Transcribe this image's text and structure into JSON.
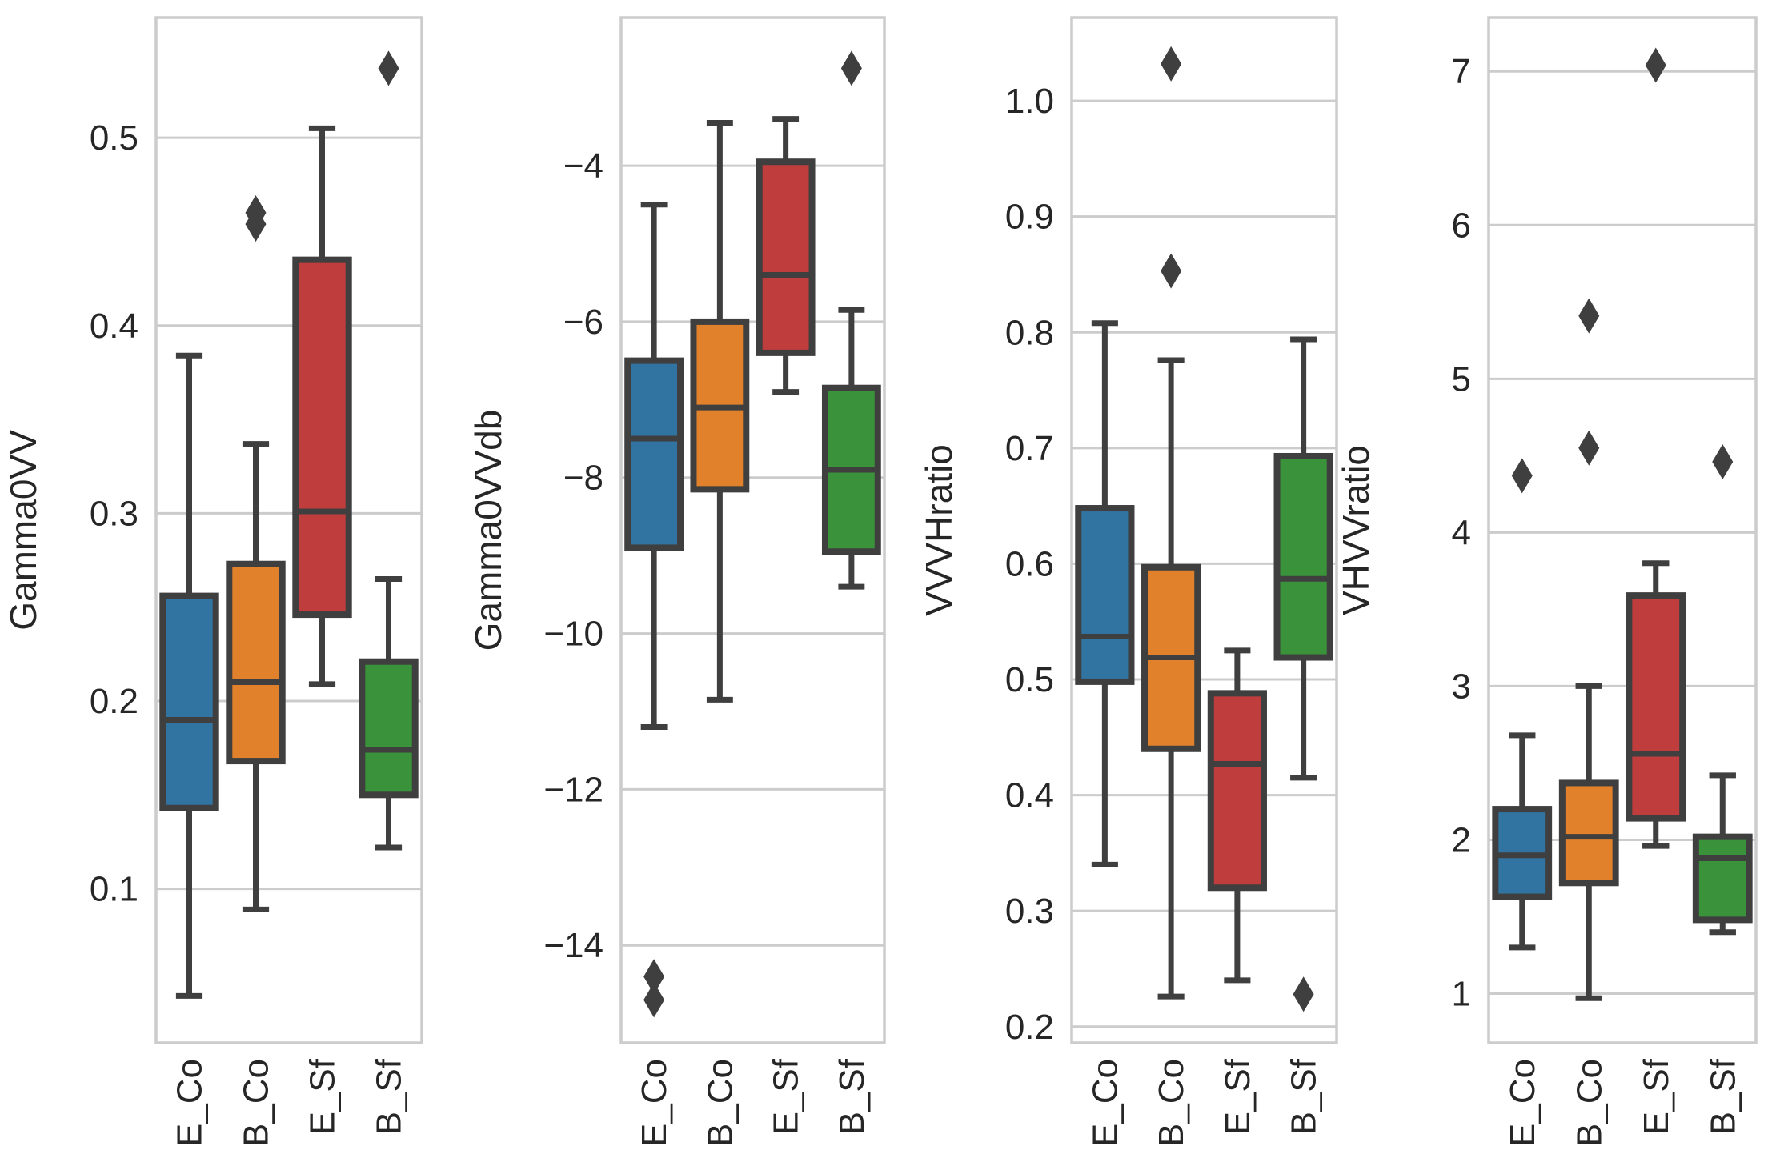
{
  "chart_data": [
    {
      "type": "box",
      "ylabel": "Gamma0VV",
      "categories": [
        "E_Co",
        "B_Co",
        "E_Sf",
        "B_Sf"
      ],
      "yticks": [
        0.1,
        0.2,
        0.3,
        0.4,
        0.5
      ],
      "ytick_labels": [
        "0.1",
        "0.2",
        "0.3",
        "0.4",
        "0.5"
      ],
      "ylim": [
        0.018,
        0.564
      ],
      "grid": true,
      "boxes": [
        {
          "name": "E_Co",
          "color": "#3274a1",
          "whisker_low": 0.043,
          "q1": 0.143,
          "median": 0.19,
          "q3": 0.256,
          "whisker_high": 0.384,
          "outliers": []
        },
        {
          "name": "B_Co",
          "color": "#e1812c",
          "whisker_low": 0.089,
          "q1": 0.168,
          "median": 0.21,
          "q3": 0.273,
          "whisker_high": 0.337,
          "outliers": [
            0.454,
            0.46
          ]
        },
        {
          "name": "E_Sf",
          "color": "#c03d3e",
          "whisker_low": 0.209,
          "q1": 0.246,
          "median": 0.301,
          "q3": 0.435,
          "whisker_high": 0.505,
          "outliers": []
        },
        {
          "name": "B_Sf",
          "color": "#3a923a",
          "whisker_low": 0.122,
          "q1": 0.15,
          "median": 0.174,
          "q3": 0.221,
          "whisker_high": 0.265,
          "outliers": [
            0.537
          ]
        }
      ]
    },
    {
      "type": "box",
      "ylabel": "Gamma0VVdb",
      "categories": [
        "E_Co",
        "B_Co",
        "E_Sf",
        "B_Sf"
      ],
      "yticks": [
        -14,
        -12,
        -10,
        -8,
        -6,
        -4
      ],
      "ytick_labels": [
        "−14",
        "−12",
        "−10",
        "−8",
        "−6",
        "−4"
      ],
      "ylim": [
        -15.25,
        -2.1
      ],
      "grid": true,
      "boxes": [
        {
          "name": "E_Co",
          "color": "#3274a1",
          "whisker_low": -11.2,
          "q1": -8.9,
          "median": -7.5,
          "q3": -6.5,
          "whisker_high": -4.5,
          "outliers": [
            -14.4,
            -14.7
          ]
        },
        {
          "name": "B_Co",
          "color": "#e1812c",
          "whisker_low": -10.85,
          "q1": -8.15,
          "median": -7.1,
          "q3": -6.0,
          "whisker_high": -3.45,
          "outliers": []
        },
        {
          "name": "E_Sf",
          "color": "#c03d3e",
          "whisker_low": -6.9,
          "q1": -6.4,
          "median": -5.4,
          "q3": -3.95,
          "whisker_high": -3.4,
          "outliers": []
        },
        {
          "name": "B_Sf",
          "color": "#3a923a",
          "whisker_low": -9.4,
          "q1": -8.95,
          "median": -7.9,
          "q3": -6.85,
          "whisker_high": -5.85,
          "outliers": [
            -2.75
          ]
        }
      ]
    },
    {
      "type": "box",
      "ylabel": "VVVHratio",
      "categories": [
        "E_Co",
        "B_Co",
        "E_Sf",
        "B_Sf"
      ],
      "yticks": [
        0.2,
        0.3,
        0.4,
        0.5,
        0.6,
        0.7,
        0.8,
        0.9,
        1.0
      ],
      "ytick_labels": [
        "0.2",
        "0.3",
        "0.4",
        "0.5",
        "0.6",
        "0.7",
        "0.8",
        "0.9",
        "1.0"
      ],
      "ylim": [
        0.186,
        1.072
      ],
      "grid": true,
      "boxes": [
        {
          "name": "E_Co",
          "color": "#3274a1",
          "whisker_low": 0.34,
          "q1": 0.498,
          "median": 0.537,
          "q3": 0.648,
          "whisker_high": 0.808,
          "outliers": []
        },
        {
          "name": "B_Co",
          "color": "#e1812c",
          "whisker_low": 0.226,
          "q1": 0.44,
          "median": 0.519,
          "q3": 0.597,
          "whisker_high": 0.776,
          "outliers": [
            0.853,
            1.032
          ]
        },
        {
          "name": "E_Sf",
          "color": "#c03d3e",
          "whisker_low": 0.24,
          "q1": 0.32,
          "median": 0.427,
          "q3": 0.488,
          "whisker_high": 0.525,
          "outliers": []
        },
        {
          "name": "B_Sf",
          "color": "#3a923a",
          "whisker_low": 0.415,
          "q1": 0.519,
          "median": 0.587,
          "q3": 0.693,
          "whisker_high": 0.794,
          "outliers": [
            0.228
          ]
        }
      ]
    },
    {
      "type": "box",
      "ylabel": "VHVVratio",
      "categories": [
        "E_Co",
        "B_Co",
        "E_Sf",
        "B_Sf"
      ],
      "yticks": [
        1,
        2,
        3,
        4,
        5,
        6,
        7
      ],
      "ytick_labels": [
        "1",
        "2",
        "3",
        "4",
        "5",
        "6",
        "7"
      ],
      "ylim": [
        0.68,
        7.35
      ],
      "grid": true,
      "boxes": [
        {
          "name": "E_Co",
          "color": "#3274a1",
          "whisker_low": 1.3,
          "q1": 1.63,
          "median": 1.9,
          "q3": 2.2,
          "whisker_high": 2.68,
          "outliers": [
            4.37
          ]
        },
        {
          "name": "B_Co",
          "color": "#e1812c",
          "whisker_low": 0.97,
          "q1": 1.72,
          "median": 2.02,
          "q3": 2.37,
          "whisker_high": 3.0,
          "outliers": [
            4.55,
            5.41
          ]
        },
        {
          "name": "E_Sf",
          "color": "#c03d3e",
          "whisker_low": 1.96,
          "q1": 2.14,
          "median": 2.56,
          "q3": 3.59,
          "whisker_high": 3.8,
          "outliers": [
            7.04
          ]
        },
        {
          "name": "B_Sf",
          "color": "#3a923a",
          "whisker_low": 1.4,
          "q1": 1.48,
          "median": 1.88,
          "q3": 2.02,
          "whisker_high": 2.42,
          "outliers": [
            4.46
          ]
        }
      ]
    }
  ]
}
